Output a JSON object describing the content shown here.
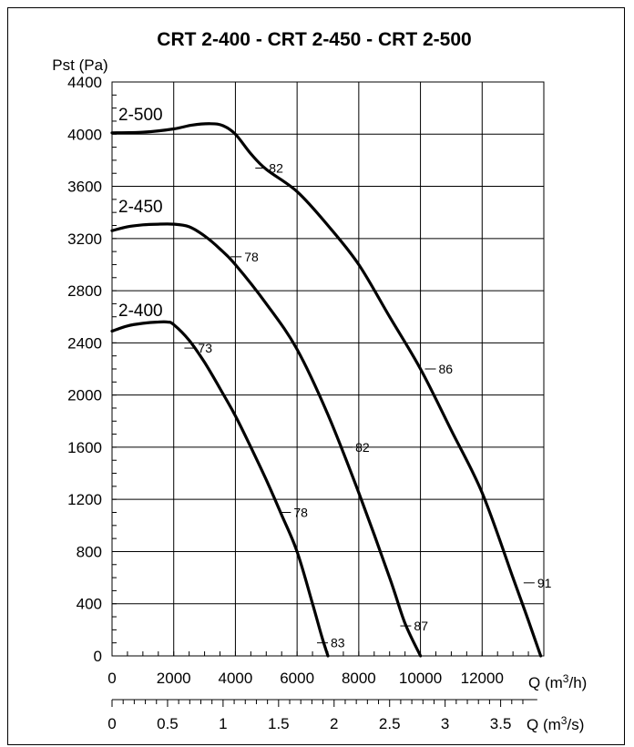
{
  "chart_data": {
    "type": "line",
    "title": "CRT 2-400 - CRT 2-450 - CRT 2-500",
    "ylabel": "Pst (Pa)",
    "xlabel": "Q (m³/h)",
    "xlabel2": "Q (m³/s)",
    "xlabel_main": "Q (m",
    "xlabel_sup": "3",
    "xlabel_unit": "/h)",
    "xlabel2_main": "Q (m",
    "xlabel2_sup": "3",
    "xlabel2_unit": "/s)",
    "xlim": [
      0,
      14000
    ],
    "ylim": [
      0,
      4400
    ],
    "grid": true,
    "x_ticks": [
      "0",
      "2000",
      "4000",
      "6000",
      "8000",
      "10000",
      "12000"
    ],
    "x_tick_values": [
      0,
      2000,
      4000,
      6000,
      8000,
      10000,
      12000
    ],
    "y_ticks": [
      "0",
      "400",
      "800",
      "1200",
      "1600",
      "2000",
      "2400",
      "2800",
      "3200",
      "3600",
      "4000",
      "4400"
    ],
    "y_tick_values": [
      0,
      400,
      800,
      1200,
      1600,
      2000,
      2400,
      2800,
      3200,
      3600,
      4000,
      4400
    ],
    "x2_ticks": [
      "0",
      "0.5",
      "1",
      "1.5",
      "2",
      "2.5",
      "3",
      "3.5"
    ],
    "x2_tick_values": [
      0,
      0.5,
      1,
      1.5,
      2,
      2.5,
      3,
      3.5
    ],
    "series": [
      {
        "name": "2-500",
        "label": "2-500",
        "x": [
          0,
          1000,
          2000,
          2600,
          3200,
          3600,
          4000,
          4500,
          5000,
          6000,
          7000,
          8000,
          9000,
          10000,
          11000,
          12000,
          13000,
          13500,
          13900
        ],
        "y": [
          4010,
          4015,
          4040,
          4070,
          4080,
          4065,
          4000,
          3850,
          3730,
          3560,
          3300,
          3000,
          2600,
          2200,
          1730,
          1250,
          600,
          270,
          0
        ],
        "efficiency_labels": [
          {
            "text": "82",
            "x": 5000,
            "y": 3740
          },
          {
            "text": "86",
            "x": 10500,
            "y": 2200
          },
          {
            "text": "91",
            "x": 13700,
            "y": 560
          }
        ]
      },
      {
        "name": "2-450",
        "label": "2-450",
        "x": [
          0,
          500,
          1000,
          1500,
          2000,
          2500,
          3000,
          3500,
          4000,
          5000,
          6000,
          7000,
          8000,
          9000,
          9500,
          10000
        ],
        "y": [
          3260,
          3290,
          3305,
          3310,
          3310,
          3290,
          3220,
          3120,
          3000,
          2700,
          2350,
          1850,
          1250,
          600,
          250,
          0
        ],
        "efficiency_labels": [
          {
            "text": "78",
            "x": 4200,
            "y": 3060
          },
          {
            "text": "82",
            "x": 7800,
            "y": 1600
          },
          {
            "text": "87",
            "x": 9700,
            "y": 230
          }
        ]
      },
      {
        "name": "2-400",
        "label": "2-400",
        "x": [
          0,
          500,
          1000,
          1500,
          1800,
          2000,
          2500,
          3000,
          3500,
          4000,
          4500,
          5000,
          5500,
          6000,
          6500,
          6800,
          7000
        ],
        "y": [
          2490,
          2530,
          2550,
          2560,
          2560,
          2540,
          2420,
          2250,
          2050,
          1840,
          1600,
          1350,
          1080,
          800,
          400,
          150,
          0
        ],
        "efficiency_labels": [
          {
            "text": "73",
            "x": 2700,
            "y": 2360
          },
          {
            "text": "78",
            "x": 5800,
            "y": 1100
          },
          {
            "text": "83",
            "x": 7000,
            "y": 100
          }
        ]
      }
    ]
  }
}
